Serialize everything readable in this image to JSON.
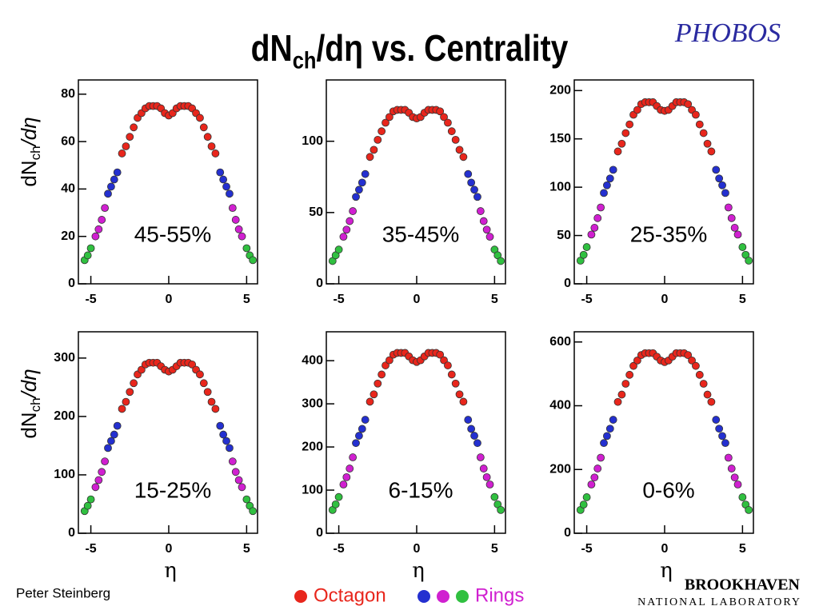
{
  "slide": {
    "title": {
      "main": "dN",
      "sub": "ch",
      "tail": "/dη vs. Centrality"
    },
    "logo_text": "PHOBOS",
    "author": "Peter Steinberg",
    "lab": {
      "name": "BROOKHAVEN",
      "sub": "NATIONAL LABORATORY"
    },
    "legend": [
      {
        "label": "Octagon",
        "colors": [
          "#e8261c"
        ]
      },
      {
        "label": "Rings",
        "colors": [
          "#2430d0",
          "#d020d0",
          "#30c040"
        ]
      }
    ]
  },
  "chart_data": [
    {
      "type": "scatter",
      "label": "45-55%",
      "ylabel": {
        "main": "dN",
        "sub": "ch",
        "tail": "/dη"
      },
      "xlim": [
        -5.8,
        5.7
      ],
      "ylim": [
        0,
        86
      ],
      "xticks": [
        -5,
        0,
        5
      ],
      "yticks": [
        0,
        20,
        40,
        60,
        80
      ],
      "series": [
        {
          "color": "#e8261c",
          "x": [
            -3,
            -2.75,
            -2.5,
            -2.25,
            -2,
            -1.75,
            -1.5,
            -1.25,
            -1,
            -0.75,
            -0.5,
            -0.25,
            0,
            0.25,
            0.5,
            0.75,
            1,
            1.25,
            1.5,
            1.75,
            2,
            2.25,
            2.5,
            2.75,
            3
          ],
          "values": [
            55,
            58,
            62,
            66,
            70,
            72,
            74,
            75,
            75,
            75,
            74,
            72,
            71,
            72,
            74,
            75,
            75,
            75,
            74,
            72,
            70,
            66,
            62,
            58,
            55
          ]
        },
        {
          "color": "#2430d0",
          "x": [
            -3.9,
            -3.7,
            -3.5,
            -3.3,
            3.3,
            3.5,
            3.7,
            3.9
          ],
          "values": [
            38,
            41,
            44,
            47,
            47,
            44,
            41,
            38
          ]
        },
        {
          "color": "#d020d0",
          "x": [
            -4.7,
            -4.5,
            -4.3,
            -4.1,
            4.1,
            4.3,
            4.5,
            4.7
          ],
          "values": [
            20,
            23,
            27,
            32,
            32,
            27,
            23,
            20
          ]
        },
        {
          "color": "#30c040",
          "x": [
            -5.4,
            -5.2,
            -5,
            5,
            5.2,
            5.4
          ],
          "values": [
            10,
            12,
            15,
            15,
            12,
            10
          ]
        }
      ]
    },
    {
      "type": "scatter",
      "label": "35-45%",
      "xlim": [
        -5.8,
        5.7
      ],
      "ylim": [
        0,
        143
      ],
      "xticks": [
        -5,
        0,
        5
      ],
      "yticks": [
        0,
        50,
        100
      ],
      "series": [
        {
          "color": "#e8261c",
          "x": [
            -3,
            -2.75,
            -2.5,
            -2.25,
            -2,
            -1.75,
            -1.5,
            -1.25,
            -1,
            -0.75,
            -0.5,
            -0.25,
            0,
            0.25,
            0.5,
            0.75,
            1,
            1.25,
            1.5,
            1.75,
            2,
            2.25,
            2.5,
            2.75,
            3
          ],
          "values": [
            89,
            94,
            101,
            107,
            113,
            117,
            121,
            122,
            122,
            122,
            120,
            117,
            116,
            117,
            120,
            122,
            122,
            122,
            121,
            117,
            113,
            107,
            101,
            94,
            89
          ]
        },
        {
          "color": "#2430d0",
          "x": [
            -3.9,
            -3.7,
            -3.5,
            -3.3,
            3.3,
            3.5,
            3.7,
            3.9
          ],
          "values": [
            61,
            66,
            71,
            77,
            77,
            71,
            66,
            61
          ]
        },
        {
          "color": "#d020d0",
          "x": [
            -4.7,
            -4.5,
            -4.3,
            -4.1,
            4.1,
            4.3,
            4.5,
            4.7
          ],
          "values": [
            33,
            38,
            44,
            51,
            51,
            44,
            38,
            33
          ]
        },
        {
          "color": "#30c040",
          "x": [
            -5.4,
            -5.2,
            -5,
            5,
            5.2,
            5.4
          ],
          "values": [
            16,
            20,
            24,
            24,
            20,
            16
          ]
        }
      ]
    },
    {
      "type": "scatter",
      "label": "25-35%",
      "xlim": [
        -5.8,
        5.7
      ],
      "ylim": [
        0,
        211
      ],
      "xticks": [
        -5,
        0,
        5
      ],
      "yticks": [
        0,
        50,
        100,
        150,
        200
      ],
      "series": [
        {
          "color": "#e8261c",
          "x": [
            -3,
            -2.75,
            -2.5,
            -2.25,
            -2,
            -1.75,
            -1.5,
            -1.25,
            -1,
            -0.75,
            -0.5,
            -0.25,
            0,
            0.25,
            0.5,
            0.75,
            1,
            1.25,
            1.5,
            1.75,
            2,
            2.25,
            2.5,
            2.75,
            3
          ],
          "values": [
            137,
            145,
            156,
            165,
            175,
            180,
            186,
            188,
            188,
            188,
            184,
            180,
            179,
            180,
            184,
            188,
            188,
            188,
            186,
            180,
            175,
            165,
            156,
            145,
            137
          ]
        },
        {
          "color": "#2430d0",
          "x": [
            -3.9,
            -3.7,
            -3.5,
            -3.3,
            3.3,
            3.5,
            3.7,
            3.9
          ],
          "values": [
            94,
            102,
            109,
            118,
            118,
            109,
            102,
            94
          ]
        },
        {
          "color": "#d020d0",
          "x": [
            -4.7,
            -4.5,
            -4.3,
            -4.1,
            4.1,
            4.3,
            4.5,
            4.7
          ],
          "values": [
            51,
            58,
            68,
            79,
            79,
            68,
            58,
            51
          ]
        },
        {
          "color": "#30c040",
          "x": [
            -5.4,
            -5.2,
            -5,
            5,
            5.2,
            5.4
          ],
          "values": [
            24,
            30,
            38,
            38,
            30,
            24
          ]
        }
      ]
    },
    {
      "type": "scatter",
      "label": "15-25%",
      "xlabel": "η",
      "ylabel": {
        "main": "dN",
        "sub": "ch",
        "tail": "/dη"
      },
      "xlim": [
        -5.8,
        5.7
      ],
      "ylim": [
        0,
        345
      ],
      "xticks": [
        -5,
        0,
        5
      ],
      "yticks": [
        0,
        100,
        200,
        300
      ],
      "series": [
        {
          "color": "#e8261c",
          "x": [
            -3,
            -2.75,
            -2.5,
            -2.25,
            -2,
            -1.75,
            -1.5,
            -1.25,
            -1,
            -0.75,
            -0.5,
            -0.25,
            0,
            0.25,
            0.5,
            0.75,
            1,
            1.25,
            1.5,
            1.75,
            2,
            2.25,
            2.5,
            2.75,
            3
          ],
          "values": [
            213,
            225,
            242,
            257,
            272,
            280,
            289,
            292,
            292,
            292,
            286,
            280,
            277,
            280,
            286,
            292,
            292,
            292,
            289,
            280,
            272,
            257,
            242,
            225,
            213
          ]
        },
        {
          "color": "#2430d0",
          "x": [
            -3.9,
            -3.7,
            -3.5,
            -3.3,
            3.3,
            3.5,
            3.7,
            3.9
          ],
          "values": [
            146,
            158,
            169,
            184,
            184,
            169,
            158,
            146
          ]
        },
        {
          "color": "#d020d0",
          "x": [
            -4.7,
            -4.5,
            -4.3,
            -4.1,
            4.1,
            4.3,
            4.5,
            4.7
          ],
          "values": [
            79,
            91,
            105,
            123,
            123,
            105,
            91,
            79
          ]
        },
        {
          "color": "#30c040",
          "x": [
            -5.4,
            -5.2,
            -5,
            5,
            5.2,
            5.4
          ],
          "values": [
            38,
            47,
            58,
            58,
            47,
            38
          ]
        }
      ]
    },
    {
      "type": "scatter",
      "label": "6-15%",
      "xlabel": "η",
      "xlim": [
        -5.8,
        5.7
      ],
      "ylim": [
        0,
        467
      ],
      "xticks": [
        -5,
        0,
        5
      ],
      "yticks": [
        0,
        100,
        200,
        300,
        400
      ],
      "series": [
        {
          "color": "#e8261c",
          "x": [
            -3,
            -2.75,
            -2.5,
            -2.25,
            -2,
            -1.75,
            -1.5,
            -1.25,
            -1,
            -0.75,
            -0.5,
            -0.25,
            0,
            0.25,
            0.5,
            0.75,
            1,
            1.25,
            1.5,
            1.75,
            2,
            2.25,
            2.5,
            2.75,
            3
          ],
          "values": [
            305,
            322,
            347,
            368,
            389,
            401,
            414,
            418,
            418,
            418,
            410,
            401,
            397,
            401,
            410,
            418,
            418,
            418,
            414,
            401,
            389,
            368,
            347,
            322,
            305
          ]
        },
        {
          "color": "#2430d0",
          "x": [
            -3.9,
            -3.7,
            -3.5,
            -3.3,
            3.3,
            3.5,
            3.7,
            3.9
          ],
          "values": [
            209,
            226,
            242,
            263,
            263,
            242,
            226,
            209
          ]
        },
        {
          "color": "#d020d0",
          "x": [
            -4.7,
            -4.5,
            -4.3,
            -4.1,
            4.1,
            4.3,
            4.5,
            4.7
          ],
          "values": [
            113,
            130,
            150,
            176,
            176,
            150,
            130,
            113
          ]
        },
        {
          "color": "#30c040",
          "x": [
            -5.4,
            -5.2,
            -5,
            5,
            5.2,
            5.4
          ],
          "values": [
            54,
            67,
            84,
            84,
            67,
            54
          ]
        }
      ]
    },
    {
      "type": "scatter",
      "label": "0-6%",
      "xlabel": "η",
      "xlim": [
        -5.8,
        5.7
      ],
      "ylim": [
        0,
        632
      ],
      "xticks": [
        -5,
        0,
        5
      ],
      "yticks": [
        0,
        200,
        400,
        600
      ],
      "series": [
        {
          "color": "#e8261c",
          "x": [
            -3,
            -2.75,
            -2.5,
            -2.25,
            -2,
            -1.75,
            -1.5,
            -1.25,
            -1,
            -0.75,
            -0.5,
            -0.25,
            0,
            0.25,
            0.5,
            0.75,
            1,
            1.25,
            1.5,
            1.75,
            2,
            2.25,
            2.5,
            2.75,
            3
          ],
          "values": [
            412,
            435,
            469,
            497,
            525,
            542,
            559,
            565,
            565,
            565,
            554,
            542,
            537,
            542,
            554,
            565,
            565,
            565,
            559,
            542,
            525,
            497,
            469,
            435,
            412
          ]
        },
        {
          "color": "#2430d0",
          "x": [
            -3.9,
            -3.7,
            -3.5,
            -3.3,
            3.3,
            3.5,
            3.7,
            3.9
          ],
          "values": [
            283,
            305,
            328,
            356,
            356,
            328,
            305,
            283
          ]
        },
        {
          "color": "#d020d0",
          "x": [
            -4.7,
            -4.5,
            -4.3,
            -4.1,
            4.1,
            4.3,
            4.5,
            4.7
          ],
          "values": [
            153,
            175,
            203,
            237,
            237,
            203,
            175,
            153
          ]
        },
        {
          "color": "#30c040",
          "x": [
            -5.4,
            -5.2,
            -5,
            5,
            5.2,
            5.4
          ],
          "values": [
            73,
            90,
            113,
            113,
            90,
            73
          ]
        }
      ]
    }
  ]
}
